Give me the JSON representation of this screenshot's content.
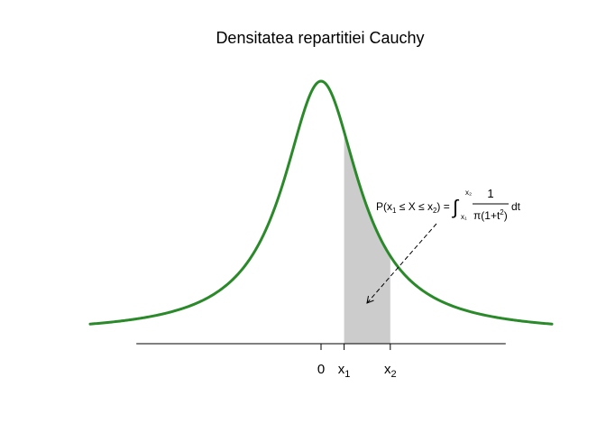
{
  "chart_data": {
    "type": "line",
    "title": "Densitatea repartitiei Cauchy",
    "xlabel": "",
    "ylabel": "",
    "distribution": "cauchy",
    "location": 0,
    "scale": 1,
    "xlim": [
      -5,
      5
    ],
    "ylim": [
      0,
      0.3183
    ],
    "x1": 0.5,
    "x2": 1.5,
    "line_color": "#2a8a2a",
    "shade_color": "#cccccc",
    "ticks": [
      {
        "value": 0,
        "label": "0",
        "sub": ""
      },
      {
        "value": 0.5,
        "label": "x",
        "sub": "1"
      },
      {
        "value": 1.5,
        "label": "x",
        "sub": "2"
      }
    ],
    "annotation": {
      "lhs_open": "P(x",
      "lhs_sub1": "1",
      "lhs_mid": " ≤ X ≤ x",
      "lhs_sub2": "2",
      "lhs_close": ") =",
      "integral_sign": "∫",
      "upper_limit": "x₂",
      "lower_limit": "x₁",
      "numerator": "1",
      "denominator": "π(1+t",
      "denominator_sup": "2",
      "denominator_close": ")",
      "differential": "dt"
    }
  }
}
